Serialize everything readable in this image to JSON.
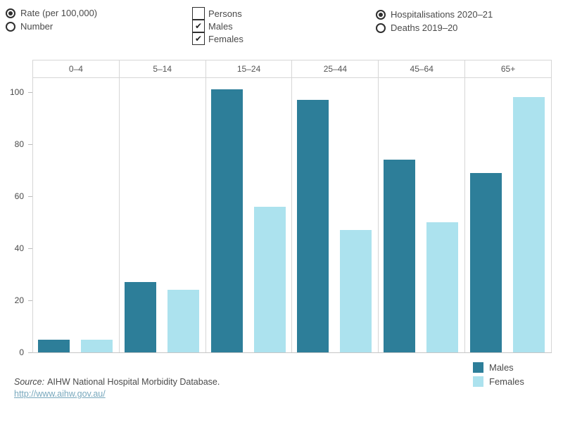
{
  "controls": {
    "measure_group": {
      "options": [
        {
          "label": "Rate (per 100,000)",
          "selected": true
        },
        {
          "label": "Number",
          "selected": false
        }
      ]
    },
    "sex_group": {
      "options": [
        {
          "label": "Persons",
          "checked": false
        },
        {
          "label": "Males",
          "checked": true
        },
        {
          "label": "Females",
          "checked": true
        }
      ]
    },
    "dataset_group": {
      "options": [
        {
          "label": "Hospitalisations 2020–21",
          "selected": true
        },
        {
          "label": "Deaths 2019–20",
          "selected": false
        }
      ]
    }
  },
  "chart_data": {
    "type": "bar",
    "categories": [
      "0–4",
      "5–14",
      "15–24",
      "25–44",
      "45–64",
      "65+"
    ],
    "series": [
      {
        "name": "Males",
        "color": "#2d7e99",
        "values": [
          5,
          27,
          101,
          97,
          74,
          69
        ]
      },
      {
        "name": "Females",
        "color": "#ace2ee",
        "values": [
          5,
          24,
          56,
          47,
          50,
          98
        ]
      }
    ],
    "xlabel": "",
    "ylabel": "",
    "ylim": [
      0,
      105.7
    ],
    "yticks": [
      0,
      20,
      40,
      60,
      80,
      100
    ],
    "grid": false,
    "legend_position": "bottom-right"
  },
  "legend": {
    "items": [
      {
        "label": "Males",
        "color": "#2d7e99"
      },
      {
        "label": "Females",
        "color": "#ace2ee"
      }
    ]
  },
  "footer": {
    "source_prefix": "Source:",
    "source_text": "AIHW National Hospital Morbidity Database.",
    "link_text": "http://www.aihw.gov.au/"
  },
  "colors": {
    "males": "#2d7e99",
    "females": "#ace2ee",
    "panel_border": "#d6d6d6",
    "axis_line": "#c6c6c6",
    "text": "#4a4a4a",
    "link": "#78a8bd"
  }
}
